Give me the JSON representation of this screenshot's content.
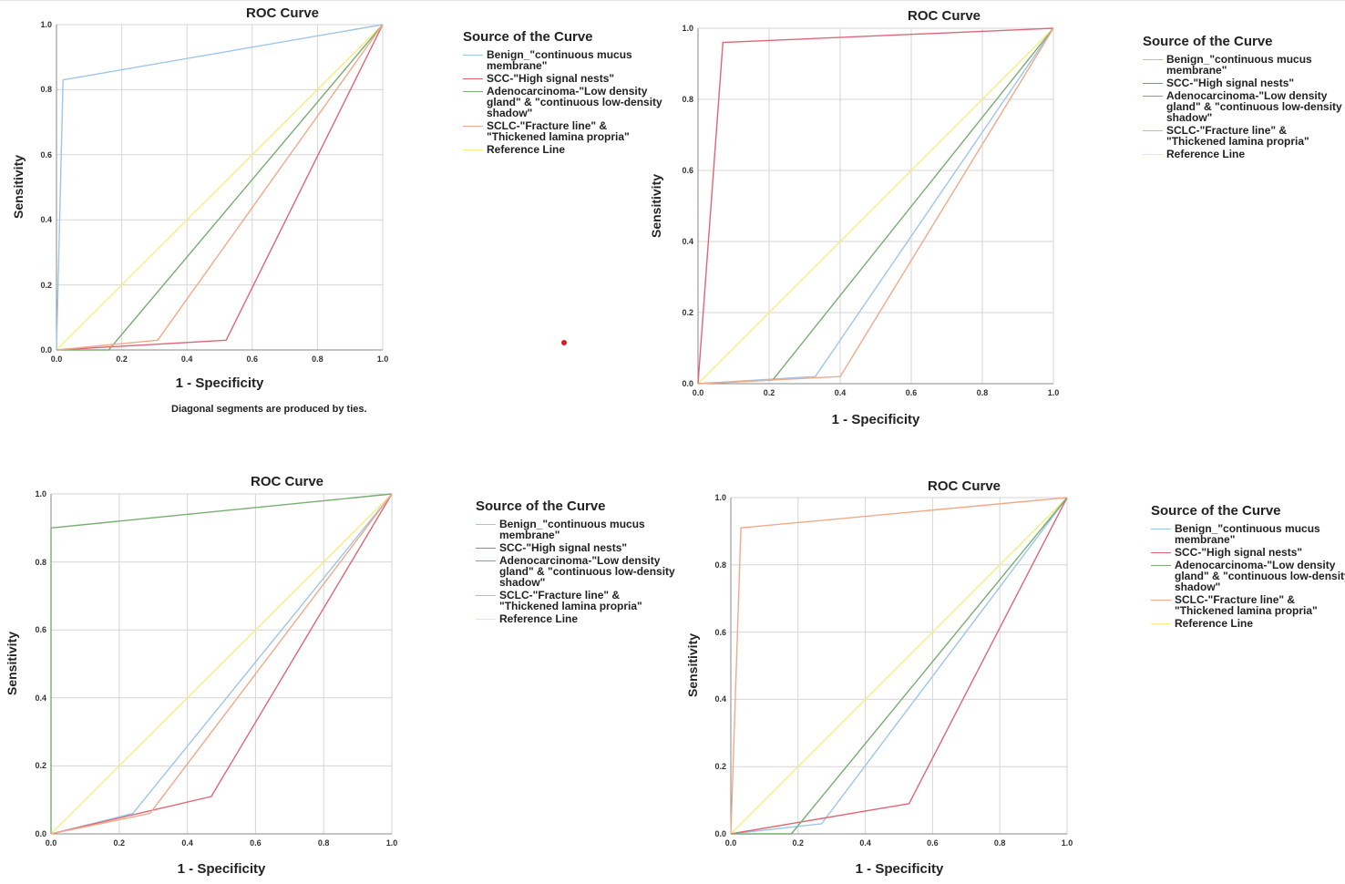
{
  "series_colors": [
    "#9ec6e8",
    "#e06677",
    "#79ad74",
    "#f2a98a",
    "#f5ee82"
  ],
  "chart_data": [
    {
      "type": "line",
      "title": "ROC Curve",
      "xlabel": "1 - Specificity",
      "ylabel": "Sensitivity",
      "xlim": [
        0,
        1
      ],
      "ylim": [
        0,
        1
      ],
      "xticks": [
        "0.0",
        "0.2",
        "0.4",
        "0.6",
        "0.8",
        "1.0"
      ],
      "yticks": [
        "0.0",
        "0.2",
        "0.4",
        "0.6",
        "0.8",
        "1.0"
      ],
      "grid": true,
      "note": "Diagonal segments are produced by ties.",
      "legend_title": "Source of the Curve",
      "legend": [
        "Benign_\"continuous mucus membrane\"",
        "SCC-\"High signal nests\"",
        "Adenocarcinoma-\"Low density gland\" & \"continuous low-density shadow\"",
        "SCLC-\"Fracture line\" & \"Thickened lamina propria\"",
        "Reference Line"
      ],
      "series": [
        {
          "name": "Benign_\"continuous mucus membrane\"",
          "x": [
            0,
            0.02,
            1
          ],
          "y": [
            0,
            0.83,
            1
          ]
        },
        {
          "name": "SCC-\"High signal nests\"",
          "x": [
            0,
            0.52,
            1
          ],
          "y": [
            0,
            0.03,
            1
          ]
        },
        {
          "name": "Adenocarcinoma-\"Low density gland\" & \"continuous low-density shadow\"",
          "x": [
            0,
            0.16,
            1
          ],
          "y": [
            0,
            0,
            1
          ]
        },
        {
          "name": "SCLC-\"Fracture line\" & \"Thickened lamina propria\"",
          "x": [
            0,
            0.31,
            1
          ],
          "y": [
            0,
            0.03,
            1
          ]
        },
        {
          "name": "Reference Line",
          "x": [
            0,
            1
          ],
          "y": [
            0,
            1
          ]
        }
      ]
    },
    {
      "type": "line",
      "title": "ROC Curve",
      "xlabel": "1 - Specificity",
      "ylabel": "Sensitivity",
      "xlim": [
        0,
        1
      ],
      "ylim": [
        0,
        1
      ],
      "xticks": [
        "0.0",
        "0.2",
        "0.4",
        "0.6",
        "0.8",
        "1.0"
      ],
      "yticks": [
        "0.0",
        "0.2",
        "0.4",
        "0.6",
        "0.8",
        "1.0"
      ],
      "grid": true,
      "legend_title": "Source of the Curve",
      "legend": [
        "Benign_\"continuous mucus membrane\"",
        "SCC-\"High signal nests\"",
        "Adenocarcinoma-\"Low density gland\" & \"continuous low-density shadow\"",
        "SCLC-\"Fracture line\" & \"Thickened lamina propria\"",
        "Reference Line"
      ],
      "series": [
        {
          "name": "Benign_\"continuous mucus membrane\"",
          "x": [
            0,
            0.33,
            1
          ],
          "y": [
            0,
            0.02,
            1
          ]
        },
        {
          "name": "SCC-\"High signal nests\"",
          "x": [
            0,
            0.07,
            1
          ],
          "y": [
            0,
            0.96,
            1
          ]
        },
        {
          "name": "Adenocarcinoma-\"Low density gland\" & \"continuous low-density shadow\"",
          "x": [
            0,
            0.21,
            1
          ],
          "y": [
            0,
            0.01,
            1
          ]
        },
        {
          "name": "SCLC-\"Fracture line\" & \"Thickened lamina propria\"",
          "x": [
            0,
            0.4,
            1
          ],
          "y": [
            0,
            0.02,
            1
          ]
        },
        {
          "name": "Reference Line",
          "x": [
            0,
            1
          ],
          "y": [
            0,
            1
          ]
        }
      ]
    },
    {
      "type": "line",
      "title": "ROC Curve",
      "xlabel": "1 - Specificity",
      "ylabel": "Sensitivity",
      "xlim": [
        0,
        1
      ],
      "ylim": [
        0,
        1
      ],
      "xticks": [
        "0.0",
        "0.2",
        "0.4",
        "0.6",
        "0.8",
        "1.0"
      ],
      "yticks": [
        "0.0",
        "0.2",
        "0.4",
        "0.6",
        "0.8",
        "1.0"
      ],
      "grid": true,
      "legend_title": "Source of the Curve",
      "legend": [
        "Benign_\"continuous mucus membrane\"",
        "SCC-\"High signal nests\"",
        "Adenocarcinoma-\"Low density gland\" & \"continuous low-density shadow\"",
        "SCLC-\"Fracture line\" & \"Thickened lamina propria\"",
        "Reference Line"
      ],
      "series": [
        {
          "name": "Benign_\"continuous mucus membrane\"",
          "x": [
            0,
            0.24,
            1
          ],
          "y": [
            0,
            0.06,
            1
          ]
        },
        {
          "name": "SCC-\"High signal nests\"",
          "x": [
            0,
            0.47,
            1
          ],
          "y": [
            0,
            0.11,
            1
          ]
        },
        {
          "name": "Adenocarcinoma-\"Low density gland\" & \"continuous low-density shadow\"",
          "x": [
            0,
            0,
            1
          ],
          "y": [
            0,
            0.9,
            1
          ]
        },
        {
          "name": "SCLC-\"Fracture line\" & \"Thickened lamina propria\"",
          "x": [
            0,
            0.29,
            1
          ],
          "y": [
            0,
            0.06,
            1
          ]
        },
        {
          "name": "Reference Line",
          "x": [
            0,
            1
          ],
          "y": [
            0,
            1
          ]
        }
      ]
    },
    {
      "type": "line",
      "title": "ROC Curve",
      "xlabel": "1 - Specificity",
      "ylabel": "Sensitivity",
      "xlim": [
        0,
        1
      ],
      "ylim": [
        0,
        1
      ],
      "xticks": [
        "0.0",
        "0.2",
        "0.4",
        "0.6",
        "0.8",
        "1.0"
      ],
      "yticks": [
        "0.0",
        "0.2",
        "0.4",
        "0.6",
        "0.8",
        "1.0"
      ],
      "grid": true,
      "legend_title": "Source of the Curve",
      "legend": [
        "Benign_\"continuous mucus membrane\"",
        "SCC-\"High signal nests\"",
        "Adenocarcinoma-\"Low density gland\" & \"continuous low-density shadow\"",
        "SCLC-\"Fracture line\" & \"Thickened lamina propria\"",
        "Reference Line"
      ],
      "series": [
        {
          "name": "Benign_\"continuous mucus membrane\"",
          "x": [
            0,
            0.27,
            1
          ],
          "y": [
            0,
            0.03,
            1
          ]
        },
        {
          "name": "SCC-\"High signal nests\"",
          "x": [
            0,
            0.53,
            1
          ],
          "y": [
            0,
            0.09,
            1
          ]
        },
        {
          "name": "Adenocarcinoma-\"Low density gland\" & \"continuous low-density shadow\"",
          "x": [
            0,
            0.18,
            1
          ],
          "y": [
            0,
            0,
            1
          ]
        },
        {
          "name": "SCLC-\"Fracture line\" & \"Thickened lamina propria\"",
          "x": [
            0,
            0.03,
            1
          ],
          "y": [
            0,
            0.91,
            1
          ]
        },
        {
          "name": "Reference Line",
          "x": [
            0,
            1
          ],
          "y": [
            0,
            1
          ]
        }
      ]
    }
  ]
}
